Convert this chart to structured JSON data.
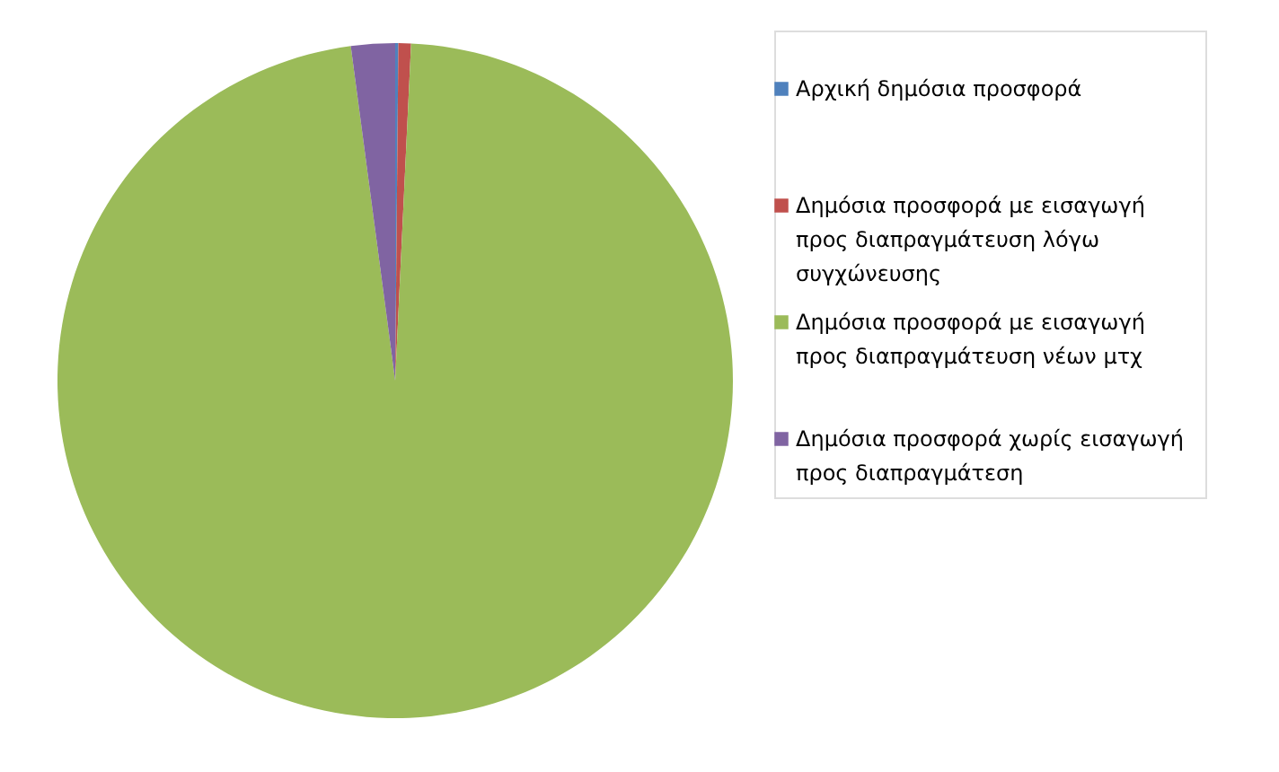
{
  "chart_data": {
    "type": "pie",
    "categories": [
      "Αρχική δημόσια προσφορά",
      "Δημόσια προσφορά με εισαγωγή προς διαπραγμάτευση λόγω συγχώνευσης",
      "Δημόσια προσφορά με εισαγωγή προς διαπραγμάτευση νέων μτχ",
      "Δημόσια προσφορά χωρίς εισαγωγή προς διαπραγμάτεση"
    ],
    "values": [
      0.15,
      0.6,
      97.15,
      2.1
    ],
    "colors": [
      "#4f81bd",
      "#c0504d",
      "#9bbb59",
      "#8064a2"
    ],
    "legend": "right"
  }
}
